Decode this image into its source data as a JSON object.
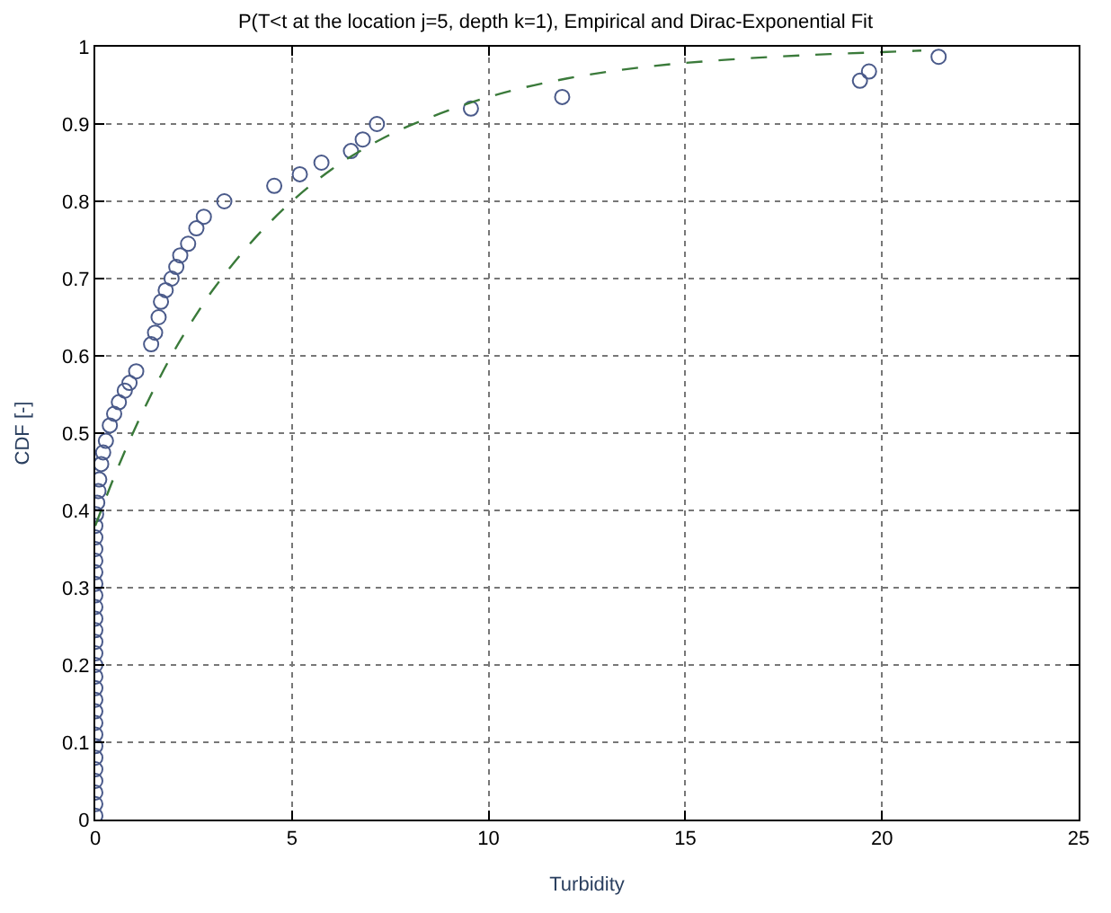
{
  "chart_data": {
    "type": "scatter",
    "title": "P(T<t at the location j=5, depth k=1), Empirical and Dirac-Exponential Fit",
    "xlabel": "Turbidity",
    "ylabel": "CDF [-]",
    "xlim": [
      0,
      25
    ],
    "xticks": [
      0,
      5,
      10,
      15,
      20,
      25
    ],
    "ylim": [
      0,
      1
    ],
    "yticks": [
      0,
      0.1,
      0.2,
      0.3,
      0.4,
      0.5,
      0.6,
      0.7,
      0.8,
      0.9,
      1
    ],
    "grid": true,
    "series": [
      {
        "marker": "circle",
        "color": "#4a5a8a",
        "x": [
          0,
          0,
          0,
          0,
          0,
          0,
          0,
          0,
          0,
          0,
          0,
          0,
          0,
          0,
          0,
          0,
          0,
          0,
          0,
          0,
          0,
          0,
          0,
          0,
          0,
          0,
          0.02,
          0.05,
          0.08,
          0.1,
          0.15,
          0.2,
          0.27,
          0.37,
          0.48,
          0.6,
          0.75,
          0.87,
          1.04,
          1.42,
          1.52,
          1.61,
          1.67,
          1.79,
          1.94,
          2.06,
          2.16,
          2.36,
          2.57,
          2.76,
          3.28,
          4.55,
          5.2,
          5.75,
          6.5,
          6.8,
          7.16,
          9.55,
          11.87,
          19.44,
          19.67,
          21.44
        ],
        "values": [
          0.005,
          0.02,
          0.035,
          0.05,
          0.065,
          0.08,
          0.095,
          0.11,
          0.125,
          0.14,
          0.155,
          0.17,
          0.185,
          0.2,
          0.215,
          0.23,
          0.245,
          0.26,
          0.275,
          0.29,
          0.305,
          0.32,
          0.335,
          0.35,
          0.365,
          0.38,
          0.395,
          0.41,
          0.425,
          0.44,
          0.46,
          0.475,
          0.49,
          0.51,
          0.525,
          0.54,
          0.555,
          0.565,
          0.58,
          0.615,
          0.63,
          0.65,
          0.67,
          0.685,
          0.7,
          0.715,
          0.73,
          0.745,
          0.765,
          0.78,
          0.8,
          0.82,
          0.835,
          0.85,
          0.865,
          0.88,
          0.9,
          0.92,
          0.935,
          0.956,
          0.968,
          0.987
        ]
      },
      {
        "type": "line",
        "marker": "none",
        "line_style": "dashed",
        "color": "#3a7a3a",
        "x": [
          0,
          0.5,
          1,
          1.5,
          2,
          2.5,
          3,
          4,
          5,
          6,
          7,
          8,
          10,
          12,
          14,
          16,
          18,
          20,
          21
        ],
        "values": [
          0.38,
          0.446,
          0.505,
          0.558,
          0.606,
          0.648,
          0.686,
          0.749,
          0.8,
          0.841,
          0.873,
          0.898,
          0.935,
          0.959,
          0.974,
          0.983,
          0.989,
          0.993,
          0.995
        ]
      }
    ]
  }
}
